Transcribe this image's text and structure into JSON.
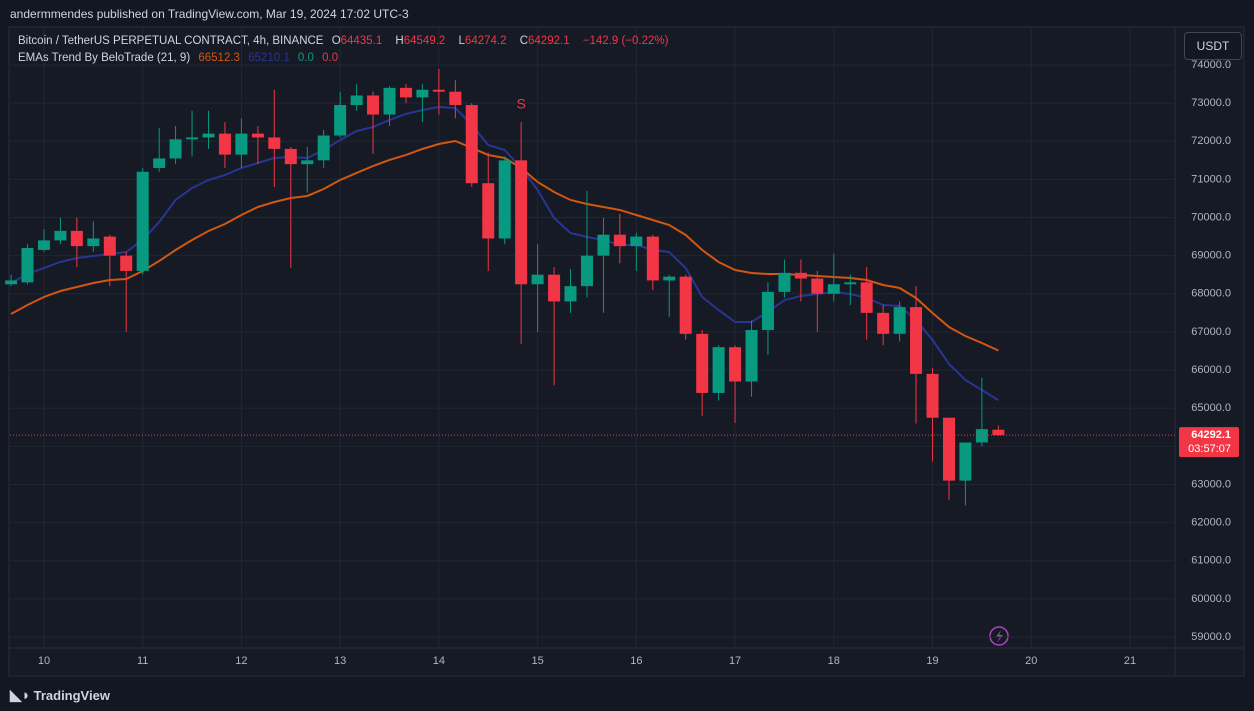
{
  "header": "andermmendes published on TradingView.com, Mar 19, 2024 17:02 UTC-3",
  "footer": "TradingView",
  "currency_button": "USDT",
  "chart_data": {
    "type": "candlestick",
    "title": "Bitcoin / TetherUS PERPETUAL CONTRACT, 4h, BINANCE",
    "ohlc_prefixes": [
      "O",
      "H",
      "L",
      "C"
    ],
    "change_label": "−142.9 (−0.22%)",
    "indicator": "EMAs Trend By BeloTrade (21, 9)",
    "indicator_extra": [
      "0.0",
      "0.0"
    ],
    "annotation": "S",
    "countdown": "03:57:07",
    "x": [
      9.667,
      9.833,
      10,
      10.167,
      10.333,
      10.5,
      10.667,
      10.833,
      11,
      11.167,
      11.333,
      11.5,
      11.667,
      11.833,
      12,
      12.167,
      12.333,
      12.5,
      12.667,
      12.833,
      13,
      13.167,
      13.333,
      13.5,
      13.667,
      13.833,
      14,
      14.167,
      14.333,
      14.5,
      14.667,
      14.833,
      15,
      15.167,
      15.333,
      15.5,
      15.667,
      15.833,
      16,
      16.167,
      16.333,
      16.5,
      16.667,
      16.833,
      17,
      17.167,
      17.333,
      17.5,
      17.667,
      17.833,
      18,
      18.167,
      18.333,
      18.5,
      18.667,
      18.833,
      19,
      19.167,
      19.333,
      19.5,
      19.667
    ],
    "open": [
      68250,
      68300,
      69150,
      69400,
      69650,
      69250,
      69500,
      69000,
      68600,
      71300,
      71550,
      72050,
      72100,
      72200,
      71650,
      72200,
      72100,
      71800,
      71400,
      71500,
      72150,
      72950,
      73200,
      72700,
      73400,
      73150,
      73350,
      73300,
      72950,
      70900,
      69450,
      71500,
      68250,
      68500,
      67800,
      68200,
      69000,
      69550,
      69250,
      69500,
      68350,
      68450,
      66950,
      65400,
      66600,
      65700,
      67050,
      68050,
      68550,
      68400,
      68000,
      68250,
      68300,
      67500,
      66950,
      67650,
      65900,
      64750,
      63100,
      64100,
      64435.1
    ],
    "high": [
      68500,
      69300,
      69700,
      70000,
      70000,
      69900,
      69550,
      69100,
      71300,
      72350,
      72400,
      72800,
      72800,
      72500,
      72600,
      72400,
      73350,
      71850,
      71850,
      72300,
      73300,
      73500,
      73300,
      73450,
      73500,
      73500,
      73900,
      73600,
      73000,
      71700,
      71600,
      72500,
      69300,
      68700,
      68650,
      70700,
      70000,
      70100,
      69600,
      69550,
      68500,
      68500,
      67050,
      66650,
      66650,
      67300,
      68300,
      68900,
      68900,
      68600,
      69050,
      68500,
      68700,
      67700,
      67800,
      68200,
      66050,
      64750,
      64100,
      65800,
      64549.2
    ],
    "low": [
      68200,
      68250,
      69100,
      69300,
      68700,
      69100,
      68200,
      67000,
      68500,
      71200,
      71400,
      71600,
      71800,
      71300,
      71300,
      71400,
      70800,
      68680,
      70650,
      71300,
      72100,
      72800,
      71670,
      72400,
      73000,
      72500,
      72700,
      72600,
      70800,
      68600,
      69300,
      66680,
      67000,
      65600,
      67500,
      67900,
      67500,
      68800,
      68600,
      68100,
      67400,
      66800,
      64800,
      65200,
      64610,
      65300,
      66400,
      67900,
      67800,
      67000,
      67800,
      67700,
      66800,
      66650,
      66750,
      64600,
      63600,
      62600,
      62450,
      64000,
      64274.2
    ],
    "close": [
      68350,
      69200,
      69400,
      69650,
      69250,
      69450,
      69000,
      68600,
      71200,
      71550,
      72050,
      72100,
      72200,
      71650,
      72200,
      72100,
      71800,
      71400,
      71500,
      72150,
      72950,
      73200,
      72700,
      73400,
      73150,
      73350,
      73300,
      72950,
      70900,
      69450,
      71500,
      68250,
      68500,
      67800,
      68200,
      69000,
      69550,
      69250,
      69500,
      68350,
      68450,
      66950,
      65400,
      66600,
      65700,
      67050,
      68050,
      68550,
      68400,
      68000,
      68250,
      68300,
      67500,
      66950,
      67650,
      65900,
      64750,
      63100,
      64100,
      64450,
      64292.1
    ],
    "up_color": "#089981",
    "down_color": "#f23645",
    "series": [
      {
        "color": "#d2570f",
        "values": [
          67470,
          67706,
          67916,
          68073,
          68178,
          68283,
          68362,
          68388,
          68598,
          68860,
          69148,
          69411,
          69647,
          69830,
          70066,
          70276,
          70407,
          70512,
          70565,
          70748,
          70984,
          71168,
          71351,
          71509,
          71640,
          71797,
          71928,
          72007,
          71824,
          71640,
          71561,
          71299,
          70932,
          70670,
          70460,
          70355,
          70276,
          70198,
          70066,
          69935,
          69804,
          69542,
          69148,
          68834,
          68624,
          68545,
          68519,
          68519,
          68493,
          68467,
          68440,
          68414,
          68362,
          68231,
          68152,
          67890,
          67496,
          67129,
          66893,
          66709,
          66512.3
        ]
      },
      {
        "color": "#283593",
        "values": [
          68283,
          68519,
          68676,
          68834,
          68939,
          68991,
          69044,
          69096,
          69411,
          69883,
          70460,
          70775,
          70984,
          71115,
          71299,
          71430,
          71561,
          71588,
          71561,
          71771,
          72033,
          72269,
          72374,
          72558,
          72715,
          72820,
          72899,
          72873,
          72427,
          71902,
          71771,
          71299,
          70722,
          69988,
          69594,
          69489,
          69411,
          69280,
          69280,
          69148,
          69096,
          68676,
          67916,
          67575,
          67260,
          67260,
          67522,
          67837,
          67942,
          67995,
          68047,
          67995,
          67890,
          67706,
          67680,
          67313,
          66788,
          66159,
          65739,
          65477,
          65210.1
        ]
      }
    ],
    "xlim": [
      9.656,
      21.456
    ],
    "xticks": [
      10,
      11,
      12,
      13,
      14,
      15,
      16,
      17,
      18,
      19,
      20,
      21
    ],
    "ylim": [
      58003,
      74970
    ],
    "yticks": [
      {
        "value": 59000,
        "label": "59000.0"
      },
      {
        "value": 60000,
        "label": "60000.0"
      },
      {
        "value": 61000,
        "label": "61000.0"
      },
      {
        "value": 62000,
        "label": "62000.0"
      },
      {
        "value": 63000,
        "label": "63000.0"
      },
      {
        "value": 64000,
        "label": "64000.0"
      },
      {
        "value": 65000,
        "label": "65000.0"
      },
      {
        "value": 66000,
        "label": "66000.0"
      },
      {
        "value": 67000,
        "label": "67000.0"
      },
      {
        "value": 68000,
        "label": "68000.0"
      },
      {
        "value": 69000,
        "label": "69000.0"
      },
      {
        "value": 70000,
        "label": "70000.0"
      },
      {
        "value": 71000,
        "label": "71000.0"
      },
      {
        "value": 72000,
        "label": "72000.0"
      },
      {
        "value": 73000,
        "label": "73000.0"
      },
      {
        "value": 74000,
        "label": "74000.0"
      }
    ],
    "grid": true
  }
}
